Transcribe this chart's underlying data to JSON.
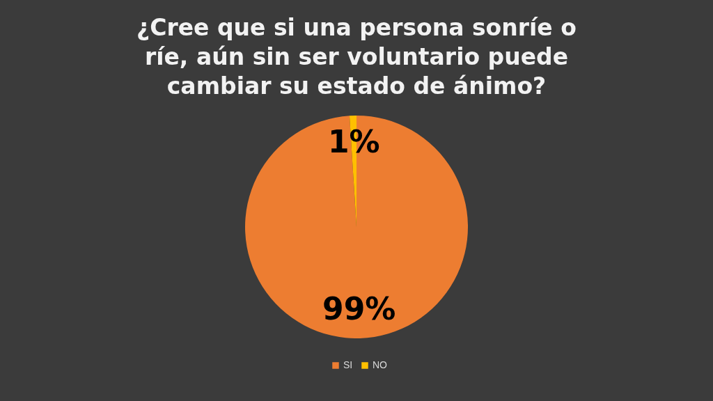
{
  "chart_data": {
    "type": "pie",
    "title": "¿Cree que si una persona sonríe o ríe, aún sin ser voluntario puede cambiar su estado de ánimo?",
    "categories": [
      "SI",
      "NO"
    ],
    "values": [
      99,
      1
    ],
    "colors": [
      "#ed7d31",
      "#ffc000"
    ],
    "value_labels": [
      "99%",
      "1%"
    ],
    "legend": "bottom"
  }
}
